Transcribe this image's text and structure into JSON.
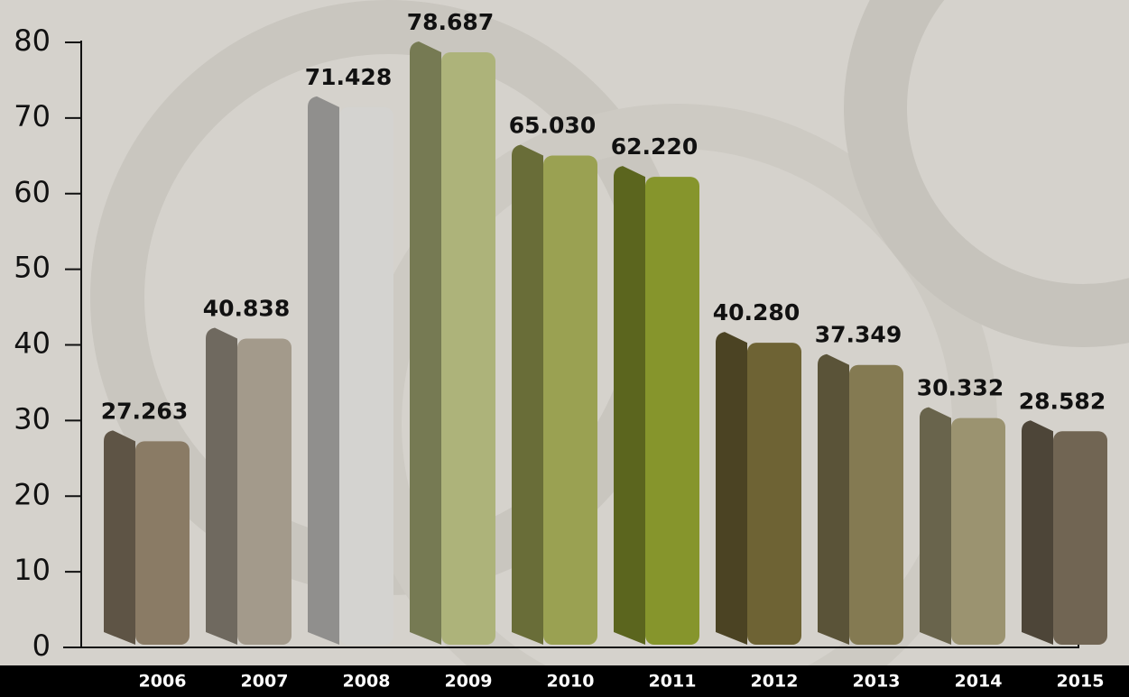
{
  "chart_data": {
    "type": "bar",
    "categories": [
      "2006",
      "2007",
      "2008",
      "2009",
      "2010",
      "2011",
      "2012",
      "2013",
      "2014",
      "2015"
    ],
    "values": [
      27.263,
      40.838,
      71.428,
      78.687,
      65.03,
      62.22,
      40.28,
      37.349,
      30.332,
      28.582
    ],
    "value_labels": [
      "27.263",
      "40.838",
      "71.428",
      "78.687",
      "65.030",
      "62.220",
      "40.280",
      "37.349",
      "30.332",
      "28.582"
    ],
    "colors": [
      "#8a7b65",
      "#a39a8b",
      "#d4d3d0",
      "#adb37a",
      "#9aa152",
      "#86952c",
      "#6e6334",
      "#847a52",
      "#9b9370",
      "#716553"
    ],
    "ylim": [
      0,
      80
    ],
    "yticks": [
      0,
      10,
      20,
      30,
      40,
      50,
      60,
      70,
      80
    ]
  }
}
